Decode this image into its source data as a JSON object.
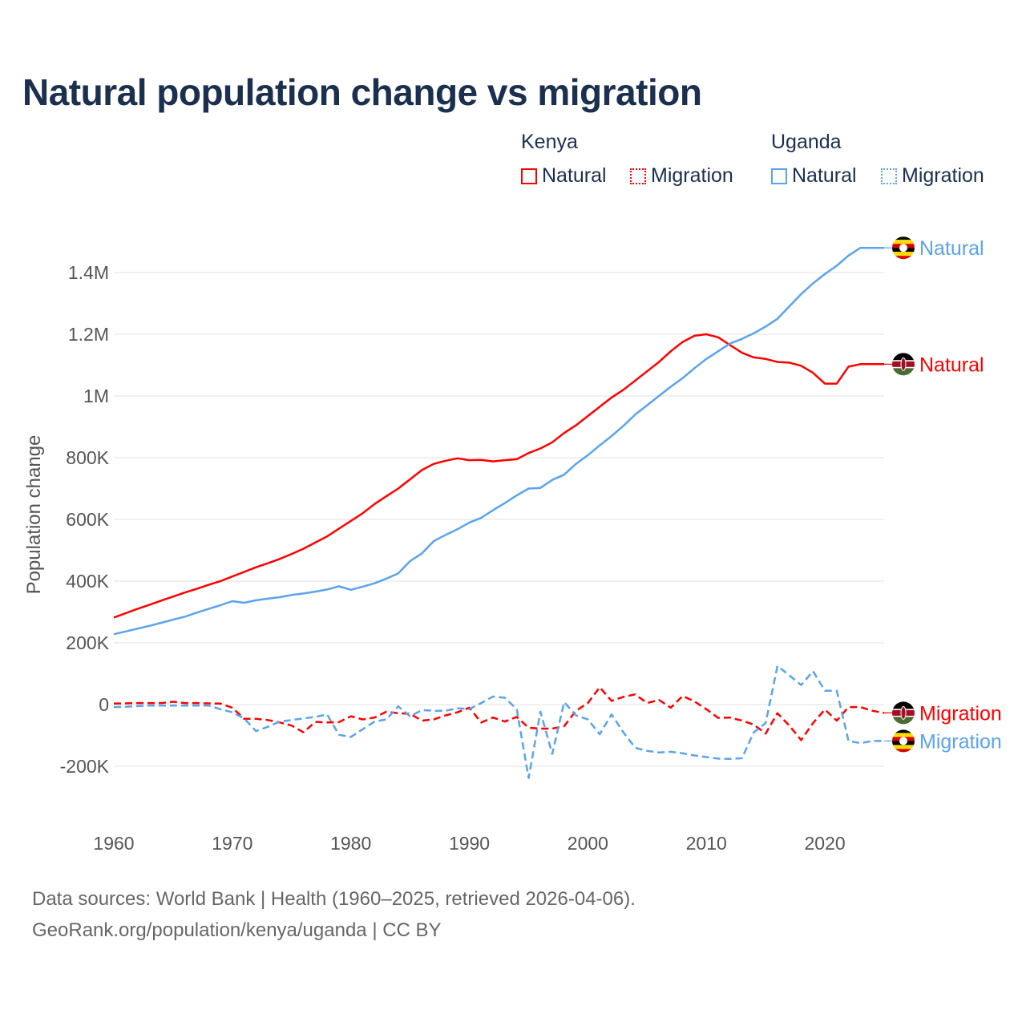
{
  "chart_data": {
    "type": "line",
    "title": "Natural population change vs migration",
    "ylabel": "Population change",
    "xlabel": "",
    "xlim": [
      1960,
      2025
    ],
    "ylim": [
      -200000,
      1400000
    ],
    "x_ticks": [
      1960,
      1970,
      1980,
      1990,
      2000,
      2010,
      2020
    ],
    "y_ticks": [
      {
        "value": -200000,
        "label": "-200K"
      },
      {
        "value": 0,
        "label": "0"
      },
      {
        "value": 200000,
        "label": "200K"
      },
      {
        "value": 400000,
        "label": "400K"
      },
      {
        "value": 600000,
        "label": "600K"
      },
      {
        "value": 800000,
        "label": "800K"
      },
      {
        "value": 1000000,
        "label": "1M"
      },
      {
        "value": 1200000,
        "label": "1.2M"
      },
      {
        "value": 1400000,
        "label": "1.4M"
      }
    ],
    "grid": true,
    "legend_placement": "top-right",
    "legend_groups": [
      {
        "country": "Kenya",
        "items": [
          "Natural",
          "Migration"
        ]
      },
      {
        "country": "Uganda",
        "items": [
          "Natural",
          "Migration"
        ]
      }
    ],
    "x_start": 1960,
    "series": [
      {
        "name": "Kenya Natural",
        "country": "Kenya",
        "label": "Natural",
        "color": "#ff0000",
        "dash": false,
        "flag": "kenya",
        "values": [
          282,
          296,
          310,
          323,
          337,
          350,
          363,
          375,
          388,
          400,
          415,
          430,
          445,
          458,
          472,
          488,
          505,
          525,
          545,
          570,
          595,
          620,
          650,
          675,
          700,
          730,
          760,
          780,
          790,
          798,
          792,
          793,
          788,
          792,
          795,
          815,
          830,
          850,
          880,
          905,
          935,
          965,
          995,
          1020,
          1050,
          1080,
          1110,
          1145,
          1175,
          1195,
          1200,
          1190,
          1165,
          1140,
          1125,
          1120,
          1110,
          1108,
          1098,
          1075,
          1040,
          1040,
          1095,
          1103,
          1103,
          1103
        ]
      },
      {
        "name": "Kenya Migration",
        "country": "Kenya",
        "label": "Migration",
        "color": "#ff0000",
        "dash": true,
        "flag": "kenya",
        "values": [
          3,
          4,
          5,
          5,
          5,
          9,
          5,
          5,
          4,
          3,
          -10,
          -46,
          -46,
          -50,
          -58,
          -68,
          -90,
          -56,
          -58,
          -57,
          -38,
          -48,
          -42,
          -23,
          -28,
          -30,
          -52,
          -48,
          -35,
          -25,
          -10,
          -58,
          -42,
          -55,
          -40,
          -75,
          -78,
          -78,
          -70,
          -20,
          5,
          56,
          12,
          25,
          33,
          5,
          15,
          -10,
          28,
          10,
          -15,
          -43,
          -42,
          -52,
          -65,
          -94,
          -28,
          -68,
          -115,
          -60,
          -16,
          -52,
          -8,
          -8,
          -20,
          -27
        ]
      },
      {
        "name": "Uganda Natural",
        "country": "Uganda",
        "label": "Natural",
        "color": "#5ba3ec",
        "dash": false,
        "flag": "uganda",
        "values": [
          228,
          237,
          246,
          255,
          265,
          275,
          285,
          298,
          310,
          322,
          335,
          330,
          338,
          343,
          348,
          355,
          360,
          366,
          373,
          383,
          372,
          382,
          393,
          408,
          425,
          465,
          490,
          530,
          550,
          568,
          590,
          605,
          630,
          653,
          678,
          700,
          702,
          728,
          745,
          780,
          808,
          840,
          870,
          903,
          940,
          970,
          1000,
          1030,
          1058,
          1090,
          1120,
          1145,
          1170,
          1185,
          1203,
          1225,
          1250,
          1290,
          1330,
          1365,
          1395,
          1422,
          1455,
          1480,
          1480,
          1480
        ]
      },
      {
        "name": "Uganda Migration",
        "country": "Uganda",
        "label": "Migration",
        "color": "#5ba3ec",
        "dash": true,
        "flag": "uganda",
        "values": [
          -8,
          -7,
          -5,
          -3,
          -3,
          -3,
          -3,
          -3,
          -3,
          -15,
          -25,
          -45,
          -86,
          -72,
          -55,
          -50,
          -45,
          -40,
          -32,
          -98,
          -105,
          -80,
          -55,
          -48,
          -6,
          -38,
          -18,
          -20,
          -20,
          -12,
          -15,
          5,
          26,
          22,
          -15,
          -238,
          -23,
          -160,
          8,
          -35,
          -48,
          -96,
          -32,
          -90,
          -140,
          -150,
          -155,
          -153,
          -158,
          -165,
          -170,
          -175,
          -176,
          -174,
          -90,
          -60,
          125,
          95,
          63,
          108,
          45,
          45,
          -118,
          -125,
          -118,
          -118
        ]
      }
    ],
    "value_unit": "thousands"
  },
  "header": {
    "title": "Natural population change vs migration"
  },
  "legend": {
    "kenya": "Kenya",
    "uganda": "Uganda",
    "natural": "Natural",
    "migration": "Migration"
  },
  "footer": {
    "line1": "Data sources: World Bank | Health (1960–2025, retrieved 2026-04-06).",
    "line2": "GeoRank.org/population/kenya/uganda | CC BY"
  }
}
